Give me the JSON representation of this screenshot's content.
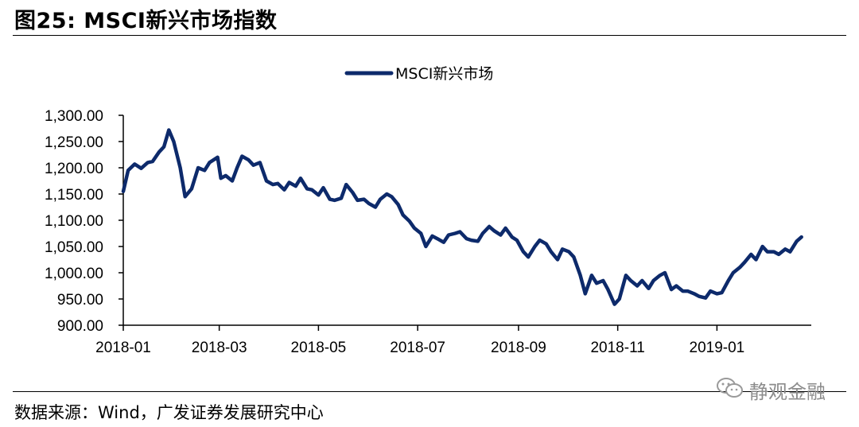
{
  "header": {
    "title": "图25: MSCI新兴市场指数"
  },
  "footer": {
    "source": "数据来源：Wind，广发证券发展研究中心"
  },
  "watermark": {
    "text": "静观金融",
    "icon": "wechat-icon"
  },
  "colors": {
    "series": "#0d2a6b",
    "text": "#000000"
  },
  "chart_data": {
    "type": "line",
    "legend": {
      "position": "top-center"
    },
    "grid": false,
    "xlabel": "",
    "ylabel": "",
    "ylim": [
      900,
      1300
    ],
    "y_ticks": [
      "900.00",
      "950.00",
      "1,000.00",
      "1,050.00",
      "1,100.00",
      "1,150.00",
      "1,200.00",
      "1,250.00",
      "1,300.00"
    ],
    "y_tick_values": [
      900,
      950,
      1000,
      1050,
      1100,
      1150,
      1200,
      1250,
      1300
    ],
    "x_ticks": [
      "2018-01",
      "2018-03",
      "2018-05",
      "2018-07",
      "2018-09",
      "2018-11",
      "2019-01"
    ],
    "x_tick_dates": [
      "2018-01-01",
      "2018-03-01",
      "2018-05-01",
      "2018-07-01",
      "2018-09-01",
      "2018-11-01",
      "2019-01-01"
    ],
    "xlim": [
      "2018-01-01",
      "2019-02-28"
    ],
    "series": [
      {
        "name": "MSCI新兴市场",
        "x": [
          "2018-01-01",
          "2018-01-04",
          "2018-01-08",
          "2018-01-12",
          "2018-01-16",
          "2018-01-19",
          "2018-01-23",
          "2018-01-26",
          "2018-01-29",
          "2018-02-01",
          "2018-02-05",
          "2018-02-08",
          "2018-02-12",
          "2018-02-16",
          "2018-02-20",
          "2018-02-23",
          "2018-02-28",
          "2018-03-02",
          "2018-03-05",
          "2018-03-09",
          "2018-03-12",
          "2018-03-15",
          "2018-03-19",
          "2018-03-22",
          "2018-03-26",
          "2018-03-30",
          "2018-04-03",
          "2018-04-06",
          "2018-04-10",
          "2018-04-13",
          "2018-04-17",
          "2018-04-20",
          "2018-04-24",
          "2018-04-27",
          "2018-05-01",
          "2018-05-04",
          "2018-05-08",
          "2018-05-11",
          "2018-05-15",
          "2018-05-18",
          "2018-05-22",
          "2018-05-25",
          "2018-05-29",
          "2018-06-01",
          "2018-06-05",
          "2018-06-08",
          "2018-06-12",
          "2018-06-15",
          "2018-06-19",
          "2018-06-22",
          "2018-06-26",
          "2018-06-29",
          "2018-07-03",
          "2018-07-06",
          "2018-07-10",
          "2018-07-13",
          "2018-07-17",
          "2018-07-20",
          "2018-07-24",
          "2018-07-27",
          "2018-07-31",
          "2018-08-03",
          "2018-08-07",
          "2018-08-10",
          "2018-08-14",
          "2018-08-17",
          "2018-08-21",
          "2018-08-24",
          "2018-08-28",
          "2018-08-31",
          "2018-09-04",
          "2018-09-07",
          "2018-09-11",
          "2018-09-14",
          "2018-09-18",
          "2018-09-21",
          "2018-09-25",
          "2018-09-28",
          "2018-10-02",
          "2018-10-05",
          "2018-10-09",
          "2018-10-12",
          "2018-10-16",
          "2018-10-19",
          "2018-10-23",
          "2018-10-26",
          "2018-10-30",
          "2018-11-02",
          "2018-11-06",
          "2018-11-09",
          "2018-11-13",
          "2018-11-16",
          "2018-11-20",
          "2018-11-23",
          "2018-11-27",
          "2018-11-30",
          "2018-12-04",
          "2018-12-07",
          "2018-12-11",
          "2018-12-14",
          "2018-12-18",
          "2018-12-21",
          "2018-12-25",
          "2018-12-28",
          "2019-01-01",
          "2019-01-04",
          "2019-01-08",
          "2019-01-11",
          "2019-01-15",
          "2019-01-18",
          "2019-01-22",
          "2019-01-25",
          "2019-01-29",
          "2019-02-01",
          "2019-02-05",
          "2019-02-08",
          "2019-02-12",
          "2019-02-15",
          "2019-02-19",
          "2019-02-22"
        ],
        "values": [
          1155,
          1195,
          1207,
          1199,
          1210,
          1212,
          1230,
          1240,
          1272,
          1250,
          1200,
          1145,
          1160,
          1200,
          1195,
          1210,
          1220,
          1180,
          1185,
          1175,
          1200,
          1222,
          1215,
          1205,
          1210,
          1175,
          1168,
          1170,
          1158,
          1172,
          1165,
          1180,
          1160,
          1158,
          1148,
          1162,
          1140,
          1138,
          1142,
          1168,
          1153,
          1138,
          1140,
          1132,
          1125,
          1140,
          1150,
          1145,
          1130,
          1110,
          1098,
          1085,
          1075,
          1050,
          1070,
          1065,
          1058,
          1072,
          1075,
          1078,
          1065,
          1062,
          1060,
          1075,
          1088,
          1080,
          1072,
          1085,
          1068,
          1062,
          1040,
          1030,
          1050,
          1062,
          1055,
          1040,
          1025,
          1045,
          1040,
          1030,
          995,
          960,
          995,
          980,
          985,
          968,
          940,
          950,
          995,
          985,
          975,
          985,
          970,
          985,
          995,
          1000,
          968,
          975,
          965,
          965,
          960,
          955,
          952,
          965,
          960,
          962,
          985,
          1000,
          1010,
          1020,
          1035,
          1025,
          1050,
          1040,
          1040,
          1035,
          1045,
          1040,
          1060,
          1068
        ]
      }
    ]
  }
}
